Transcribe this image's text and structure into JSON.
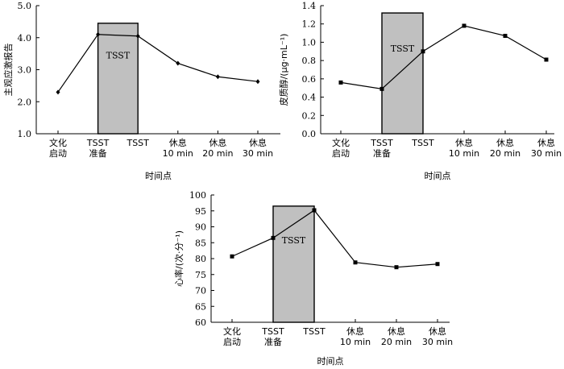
{
  "chart_data": [
    {
      "type": "line",
      "xlabel": "时间点",
      "ylabel": "主观应激报告",
      "ylim": [
        1,
        5
      ],
      "yticks": [
        1,
        2,
        3,
        4,
        5
      ],
      "categories": [
        [
          "文化",
          "启动"
        ],
        [
          "TSST",
          "准备"
        ],
        [
          "TSST"
        ],
        [
          "休息",
          "10 min"
        ],
        [
          "休息",
          "20 min"
        ],
        [
          "休息",
          "30 min"
        ]
      ],
      "values": [
        2.3,
        4.1,
        4.05,
        3.2,
        2.78,
        2.63
      ],
      "marker": "diamond",
      "box": {
        "label": "TSST",
        "from_category": 1,
        "to_category": 2,
        "top": 4.45
      }
    },
    {
      "type": "line",
      "xlabel": "时间点",
      "ylabel": "皮质醇/(μg·mL⁻¹)",
      "ylim": [
        0,
        1.4
      ],
      "yticks": [
        0,
        0.2,
        0.4,
        0.6,
        0.8,
        1.0,
        1.2,
        1.4
      ],
      "categories": [
        [
          "文化",
          "启动"
        ],
        [
          "TSST",
          "准备"
        ],
        [
          "TSST"
        ],
        [
          "休息",
          "10 min"
        ],
        [
          "休息",
          "20 min"
        ],
        [
          "休息",
          "30 min"
        ]
      ],
      "values": [
        0.56,
        0.49,
        0.9,
        1.18,
        1.07,
        0.81
      ],
      "marker": "square",
      "box": {
        "label": "TSST",
        "from_category": 1,
        "to_category": 2,
        "top": 1.32
      }
    },
    {
      "type": "line",
      "xlabel": "时间点",
      "ylabel": "心率/(次·分⁻¹)",
      "ylim": [
        60,
        100
      ],
      "yticks": [
        60,
        65,
        70,
        75,
        80,
        85,
        90,
        95,
        100
      ],
      "categories": [
        [
          "文化",
          "启动"
        ],
        [
          "TSST",
          "准备"
        ],
        [
          "TSST"
        ],
        [
          "休息",
          "10 min"
        ],
        [
          "休息",
          "20 min"
        ],
        [
          "休息",
          "30 min"
        ]
      ],
      "values": [
        80.7,
        86.5,
        95.2,
        78.8,
        77.3,
        78.3
      ],
      "marker": "square",
      "box": {
        "label": "TSST",
        "from_category": 1,
        "to_category": 2,
        "top": 96.5
      }
    }
  ]
}
